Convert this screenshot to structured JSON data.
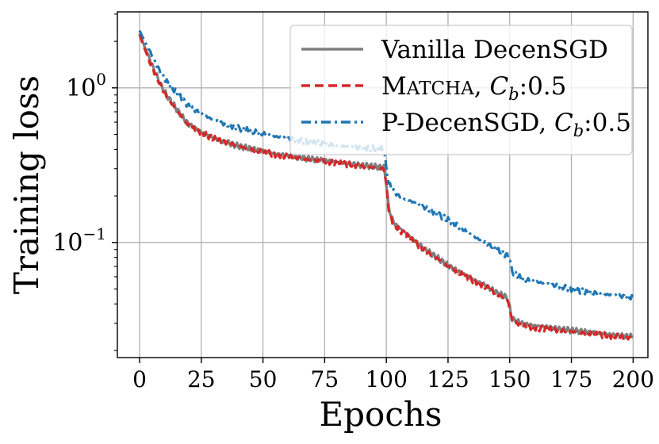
{
  "chart_data": {
    "type": "line",
    "title": "",
    "xlabel": "Epochs",
    "ylabel": "Training loss",
    "yscale": "log",
    "xlim": [
      -9,
      206
    ],
    "ylim": [
      0.018,
      3.1
    ],
    "grid": true,
    "legend_position": "top-right",
    "xticks": [
      {
        "value": 0,
        "label": "0"
      },
      {
        "value": 25,
        "label": "25"
      },
      {
        "value": 50,
        "label": "50"
      },
      {
        "value": 75,
        "label": "75"
      },
      {
        "value": 100,
        "label": "100"
      },
      {
        "value": 125,
        "label": "125"
      },
      {
        "value": 150,
        "label": "150"
      },
      {
        "value": 175,
        "label": "175"
      },
      {
        "value": 200,
        "label": "200"
      }
    ],
    "yticks": [
      {
        "value": 1.0,
        "base": "10",
        "exp": "0"
      },
      {
        "value": 0.1,
        "base": "10",
        "exp": "−1"
      }
    ],
    "series": [
      {
        "name": "Vanilla DecenSGD",
        "legend_parts": [
          "Vanilla DecenSGD"
        ],
        "color": "#7f7f7f",
        "style": "solid",
        "x": [
          0,
          2,
          4,
          6,
          8,
          10,
          12,
          15,
          18,
          20,
          25,
          30,
          35,
          40,
          45,
          50,
          55,
          60,
          65,
          70,
          75,
          80,
          85,
          90,
          95,
          99,
          100,
          101,
          103,
          105,
          110,
          115,
          120,
          125,
          130,
          135,
          140,
          145,
          149,
          150,
          151,
          155,
          160,
          165,
          170,
          175,
          180,
          185,
          190,
          195,
          200
        ],
        "y": [
          2.25,
          1.85,
          1.55,
          1.3,
          1.1,
          0.95,
          0.85,
          0.73,
          0.63,
          0.58,
          0.52,
          0.47,
          0.445,
          0.42,
          0.405,
          0.39,
          0.375,
          0.365,
          0.355,
          0.345,
          0.34,
          0.33,
          0.325,
          0.315,
          0.31,
          0.305,
          0.24,
          0.165,
          0.135,
          0.125,
          0.108,
          0.092,
          0.081,
          0.071,
          0.064,
          0.058,
          0.053,
          0.047,
          0.044,
          0.038,
          0.032,
          0.03,
          0.029,
          0.0285,
          0.0275,
          0.027,
          0.0265,
          0.026,
          0.0255,
          0.025,
          0.0245
        ]
      },
      {
        "name": "MATCHA, Cb:0.5",
        "legend_parts": [
          "M",
          "ATCHA",
          ", ",
          "C",
          "b",
          ":0.5"
        ],
        "color": "#d62728",
        "style": "dashed",
        "x": [
          0,
          2,
          4,
          6,
          8,
          10,
          12,
          15,
          18,
          20,
          25,
          30,
          35,
          40,
          45,
          50,
          55,
          60,
          65,
          70,
          75,
          80,
          85,
          90,
          95,
          99,
          100,
          101,
          103,
          105,
          110,
          115,
          120,
          125,
          130,
          135,
          140,
          145,
          149,
          150,
          151,
          155,
          160,
          165,
          170,
          175,
          180,
          185,
          190,
          195,
          200
        ],
        "y": [
          2.2,
          1.8,
          1.5,
          1.27,
          1.08,
          0.93,
          0.83,
          0.72,
          0.62,
          0.57,
          0.515,
          0.47,
          0.445,
          0.42,
          0.4,
          0.385,
          0.37,
          0.36,
          0.35,
          0.34,
          0.335,
          0.325,
          0.32,
          0.31,
          0.305,
          0.3,
          0.235,
          0.16,
          0.13,
          0.122,
          0.105,
          0.09,
          0.08,
          0.07,
          0.063,
          0.057,
          0.052,
          0.046,
          0.043,
          0.037,
          0.031,
          0.029,
          0.028,
          0.0275,
          0.027,
          0.0265,
          0.026,
          0.0255,
          0.025,
          0.0245,
          0.024
        ]
      },
      {
        "name": "P-DecenSGD, Cb:0.5",
        "legend_parts": [
          "P-DecenSGD",
          ", ",
          "C",
          "b",
          ":0.5"
        ],
        "color": "#1f77b4",
        "style": "dashdot",
        "x": [
          0,
          2,
          4,
          6,
          8,
          10,
          12,
          15,
          18,
          20,
          25,
          30,
          35,
          40,
          45,
          50,
          55,
          60,
          65,
          70,
          75,
          80,
          85,
          90,
          95,
          99,
          100,
          101,
          103,
          105,
          110,
          115,
          120,
          125,
          130,
          135,
          140,
          145,
          149,
          150,
          151,
          155,
          160,
          165,
          170,
          175,
          180,
          185,
          190,
          195,
          200
        ],
        "y": [
          2.35,
          2.0,
          1.75,
          1.5,
          1.3,
          1.15,
          1.05,
          0.93,
          0.82,
          0.76,
          0.68,
          0.62,
          0.58,
          0.55,
          0.525,
          0.505,
          0.485,
          0.47,
          0.455,
          0.445,
          0.435,
          0.425,
          0.415,
          0.41,
          0.405,
          0.4,
          0.3,
          0.24,
          0.215,
          0.2,
          0.185,
          0.17,
          0.155,
          0.14,
          0.125,
          0.11,
          0.1,
          0.09,
          0.082,
          0.078,
          0.065,
          0.058,
          0.056,
          0.054,
          0.052,
          0.05,
          0.048,
          0.047,
          0.046,
          0.045,
          0.044
        ]
      }
    ]
  }
}
